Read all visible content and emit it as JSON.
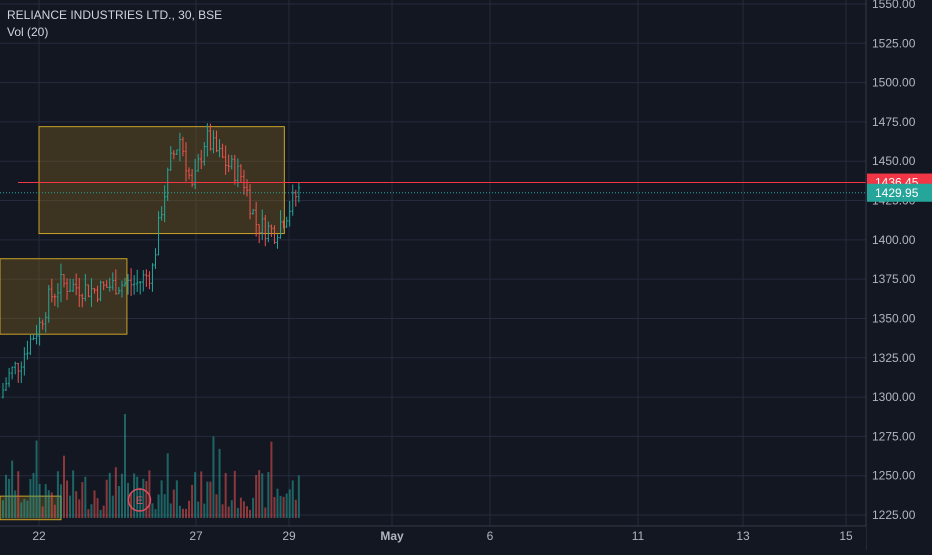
{
  "chart_data": {
    "type": "candlestick",
    "symbol_header": "RELIANCE INDUSTRIES LTD., 30, BSE",
    "indicator_label": "Vol (20)",
    "price_axis": {
      "min": 1225,
      "max": 1550,
      "ticks": [
        "1550.00",
        "1525.00",
        "1500.00",
        "1475.00",
        "1450.00",
        "1425.00",
        "1400.00",
        "1375.00",
        "1350.00",
        "1325.00",
        "1300.00",
        "1275.00",
        "1250.00",
        "1225.00"
      ]
    },
    "time_axis": {
      "labels": [
        {
          "text": "22",
          "day": 22
        },
        {
          "text": "27",
          "day": 27
        },
        {
          "text": "29",
          "day": 29
        },
        {
          "text": "May",
          "day": 31
        },
        {
          "text": "6",
          "day": 33
        },
        {
          "text": "11",
          "day": 35
        },
        {
          "text": "13",
          "day": 37
        },
        {
          "text": "15",
          "day": 39
        }
      ]
    },
    "price_labels": [
      {
        "value": 1436.45,
        "text": "1436.45",
        "color": "#f23645",
        "style": "solid"
      },
      {
        "value": 1429.95,
        "text": "1429.95",
        "color": "#26a69a",
        "style": "dotted"
      }
    ],
    "zones": [
      {
        "from_day": 22.0,
        "to_day": 28.9,
        "low": 1404,
        "high": 1472
      },
      {
        "from_day": 21.2,
        "to_day": 24.8,
        "low": 1340,
        "high": 1388
      },
      {
        "from_day": 21.2,
        "to_day": 22.7,
        "low": 1222,
        "high": 1237
      }
    ],
    "earnings_marker": {
      "text": "E",
      "day": 25.2
    },
    "colors": {
      "up": "#26a69a",
      "down": "#ef5350",
      "zone_fill": "#8a6a1e",
      "zone_border": "#c9a227",
      "grid": "#262b3e",
      "text": "#b2b5be"
    }
  }
}
